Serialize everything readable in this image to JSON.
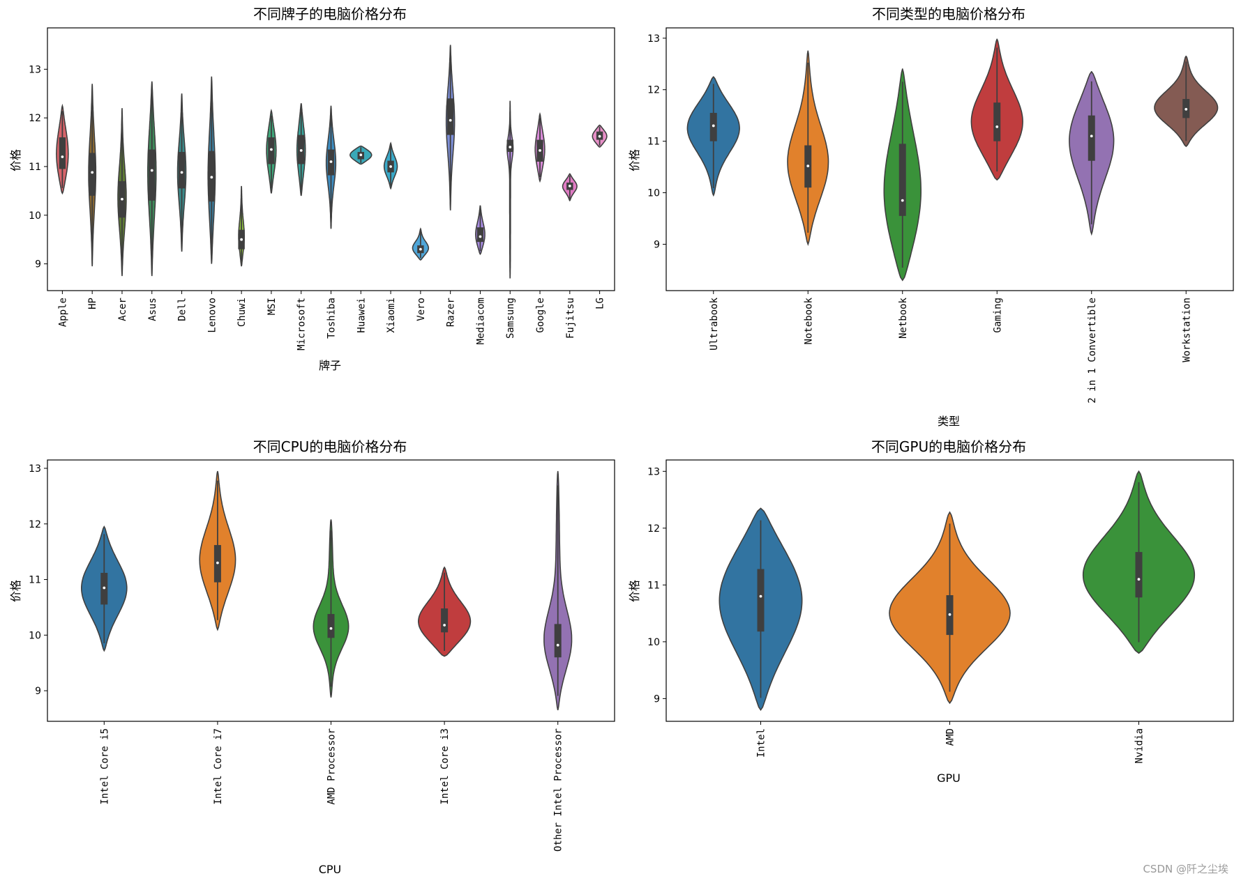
{
  "watermark": "CSDN @阡之尘埃",
  "chart_data": [
    {
      "type": "violin",
      "title": "不同牌子的电脑价格分布",
      "xlabel": "牌子",
      "ylabel": "价格",
      "ylim": [
        8.45,
        13.85
      ],
      "yticks": [
        9,
        10,
        11,
        12,
        13
      ],
      "categories": [
        "Apple",
        "HP",
        "Acer",
        "Asus",
        "Dell",
        "Lenovo",
        "Chuwi",
        "MSI",
        "Microsoft",
        "Toshiba",
        "Huawei",
        "Xiaomi",
        "Vero",
        "Razer",
        "Mediacom",
        "Samsung",
        "Google",
        "Fujitsu",
        "LG"
      ],
      "colors": [
        "#d7646a",
        "#8c6a33",
        "#5e7b34",
        "#3f8a5b",
        "#3a8a8a",
        "#3c7fa0",
        "#8fc03f",
        "#3fa67a",
        "#39a39a",
        "#3d8cc0",
        "#3aa9b8",
        "#39a9c8",
        "#4fa6d8",
        "#7d8fd8",
        "#a78be0",
        "#b68ee0",
        "#d88ad7",
        "#e07cc4",
        "#e890c8"
      ],
      "series": [
        {
          "median": 11.2,
          "q1": 10.95,
          "q3": 11.6,
          "lo": 10.45,
          "hi": 12.25,
          "w": 0.5
        },
        {
          "median": 10.88,
          "q1": 10.4,
          "q3": 11.28,
          "lo": 8.95,
          "hi": 12.7,
          "w": 0.3
        },
        {
          "median": 10.33,
          "q1": 9.95,
          "q3": 10.7,
          "lo": 8.75,
          "hi": 12.2,
          "w": 0.35
        },
        {
          "median": 10.92,
          "q1": 10.3,
          "q3": 11.35,
          "lo": 8.75,
          "hi": 12.75,
          "w": 0.35
        },
        {
          "median": 10.88,
          "q1": 10.55,
          "q3": 11.3,
          "lo": 9.25,
          "hi": 12.5,
          "w": 0.35
        },
        {
          "median": 10.78,
          "q1": 10.28,
          "q3": 11.32,
          "lo": 9.0,
          "hi": 12.85,
          "w": 0.3
        },
        {
          "median": 9.5,
          "q1": 9.3,
          "q3": 9.7,
          "lo": 8.95,
          "hi": 10.6,
          "w": 0.25
        },
        {
          "median": 11.35,
          "q1": 11.05,
          "q3": 11.6,
          "lo": 10.45,
          "hi": 12.15,
          "w": 0.4
        },
        {
          "median": 11.33,
          "q1": 11.05,
          "q3": 11.65,
          "lo": 10.4,
          "hi": 12.3,
          "w": 0.35
        },
        {
          "median": 11.1,
          "q1": 10.82,
          "q3": 11.35,
          "lo": 9.72,
          "hi": 12.25,
          "w": 0.4
        },
        {
          "median": 11.24,
          "q1": 11.15,
          "q3": 11.3,
          "lo": 11.05,
          "hi": 11.42,
          "w": 0.9
        },
        {
          "median": 11.0,
          "q1": 10.88,
          "q3": 11.12,
          "lo": 10.55,
          "hi": 11.48,
          "w": 0.55
        },
        {
          "median": 9.3,
          "q1": 9.22,
          "q3": 9.38,
          "lo": 9.08,
          "hi": 9.72,
          "w": 0.7
        },
        {
          "median": 11.95,
          "q1": 11.65,
          "q3": 12.4,
          "lo": 10.1,
          "hi": 13.5,
          "w": 0.35
        },
        {
          "median": 9.56,
          "q1": 9.45,
          "q3": 9.75,
          "lo": 9.2,
          "hi": 10.2,
          "w": 0.4
        },
        {
          "median": 11.4,
          "q1": 11.3,
          "q3": 11.55,
          "lo": 8.7,
          "hi": 12.35,
          "w": 0.3
        },
        {
          "median": 11.33,
          "q1": 11.1,
          "q3": 11.55,
          "lo": 10.7,
          "hi": 12.08,
          "w": 0.4
        },
        {
          "median": 10.6,
          "q1": 10.52,
          "q3": 10.67,
          "lo": 10.3,
          "hi": 10.85,
          "w": 0.6
        },
        {
          "median": 11.62,
          "q1": 11.55,
          "q3": 11.72,
          "lo": 11.4,
          "hi": 11.85,
          "w": 0.6
        }
      ]
    },
    {
      "type": "violin",
      "title": "不同类型的电脑价格分布",
      "xlabel": "类型",
      "ylabel": "价格",
      "ylim": [
        8.1,
        13.2
      ],
      "yticks": [
        9,
        10,
        11,
        12,
        13
      ],
      "categories": [
        "Ultrabook",
        "Notebook",
        "Netbook",
        "Gaming",
        "2 in 1 Convertible",
        "Workstation"
      ],
      "colors": [
        "#3274a1",
        "#e1812c",
        "#3a923a",
        "#c03d3e",
        "#9372b2",
        "#845b53"
      ],
      "series": [
        {
          "median": 11.3,
          "q1": 11.0,
          "q3": 11.55,
          "lo": 9.95,
          "hi": 12.25,
          "w": 0.7
        },
        {
          "median": 10.52,
          "q1": 10.1,
          "q3": 10.92,
          "lo": 9.0,
          "hi": 12.75,
          "w": 0.55
        },
        {
          "median": 9.85,
          "q1": 9.55,
          "q3": 10.95,
          "lo": 8.3,
          "hi": 12.4,
          "w": 0.5
        },
        {
          "median": 11.28,
          "q1": 11.0,
          "q3": 11.75,
          "lo": 10.25,
          "hi": 12.98,
          "w": 0.7
        },
        {
          "median": 11.1,
          "q1": 10.62,
          "q3": 11.5,
          "lo": 9.2,
          "hi": 12.35,
          "w": 0.6
        },
        {
          "median": 11.62,
          "q1": 11.45,
          "q3": 11.82,
          "lo": 10.9,
          "hi": 12.65,
          "w": 0.85
        }
      ]
    },
    {
      "type": "violin",
      "title": "不同CPU的电脑价格分布",
      "xlabel": "CPU",
      "ylabel": "价格",
      "ylim": [
        8.45,
        13.15
      ],
      "yticks": [
        9,
        10,
        11,
        12,
        13
      ],
      "categories": [
        "Intel Core i5",
        "Intel Core i7",
        "AMD Processor",
        "Intel Core i3",
        "Other Intel Processor"
      ],
      "colors": [
        "#3274a1",
        "#e1812c",
        "#3a923a",
        "#c03d3e",
        "#9372b2"
      ],
      "series": [
        {
          "median": 10.85,
          "q1": 10.55,
          "q3": 11.12,
          "lo": 9.72,
          "hi": 11.95,
          "w": 0.5
        },
        {
          "median": 11.3,
          "q1": 10.95,
          "q3": 11.62,
          "lo": 10.1,
          "hi": 12.95,
          "w": 0.4
        },
        {
          "median": 10.12,
          "q1": 9.95,
          "q3": 10.38,
          "lo": 8.88,
          "hi": 12.08,
          "w": 0.4
        },
        {
          "median": 10.18,
          "q1": 10.05,
          "q3": 10.48,
          "lo": 9.62,
          "hi": 11.22,
          "w": 0.6
        },
        {
          "median": 9.82,
          "q1": 9.6,
          "q3": 10.2,
          "lo": 8.65,
          "hi": 12.95,
          "w": 0.35
        }
      ]
    },
    {
      "type": "violin",
      "title": "不同GPU的电脑价格分布",
      "xlabel": "GPU",
      "ylabel": "价格",
      "ylim": [
        8.6,
        13.2
      ],
      "yticks": [
        9,
        10,
        11,
        12,
        13
      ],
      "categories": [
        "Intel",
        "AMD",
        "Nvidia"
      ],
      "colors": [
        "#3274a1",
        "#e1812c",
        "#3a923a"
      ],
      "series": [
        {
          "median": 10.8,
          "q1": 10.18,
          "q3": 11.28,
          "lo": 8.8,
          "hi": 12.35,
          "w": 0.55
        },
        {
          "median": 10.48,
          "q1": 10.12,
          "q3": 10.82,
          "lo": 8.92,
          "hi": 12.28,
          "w": 0.8
        },
        {
          "median": 11.1,
          "q1": 10.78,
          "q3": 11.58,
          "lo": 9.8,
          "hi": 13.0,
          "w": 0.75
        }
      ]
    }
  ]
}
